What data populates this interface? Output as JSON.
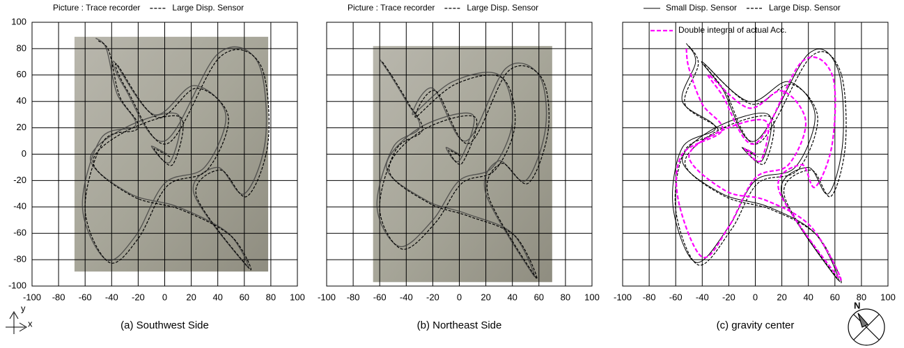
{
  "chart_data": [
    {
      "type": "line",
      "caption": "(a) Southwest Side",
      "xlim": [
        -100,
        100
      ],
      "ylim": [
        -100,
        100
      ],
      "xticks": [
        -100,
        -80,
        -60,
        -40,
        -20,
        0,
        20,
        40,
        60,
        80,
        100
      ],
      "yticks": [
        -100,
        -80,
        -60,
        -40,
        -20,
        0,
        20,
        40,
        60,
        80,
        100
      ],
      "grid": true,
      "series": [
        {
          "name": "Picture : Trace recorder",
          "color": "#3a3a3a",
          "style": "photo",
          "x": [
            -52,
            -44,
            -36,
            -22,
            -48,
            -62,
            -44,
            -22,
            0,
            30,
            46,
            22,
            -8,
            -38,
            -30,
            0,
            40,
            70,
            76,
            60,
            40,
            22,
            62,
            48,
            10,
            -26,
            -56,
            -30,
            10,
            4,
            -10,
            2
          ],
          "values": [
            88,
            80,
            46,
            22,
            12,
            -40,
            -80,
            -62,
            -22,
            -10,
            30,
            52,
            30,
            70,
            50,
            10,
            76,
            70,
            12,
            -30,
            -10,
            -30,
            -85,
            -60,
            -40,
            -30,
            -4,
            20,
            30,
            -6,
            6,
            0
          ]
        },
        {
          "name": "Large Disp. Sensor",
          "color": "#000000",
          "style": "dashed",
          "x": [
            -50,
            -42,
            -34,
            -20,
            -46,
            -60,
            -42,
            -20,
            2,
            32,
            48,
            24,
            -6,
            -36,
            -28,
            2,
            42,
            72,
            78,
            62,
            42,
            24,
            64,
            50,
            12,
            -24,
            -54,
            -28,
            12,
            6,
            -8,
            4
          ],
          "values": [
            86,
            78,
            44,
            20,
            10,
            -42,
            -82,
            -64,
            -24,
            -12,
            28,
            50,
            28,
            68,
            48,
            8,
            74,
            68,
            10,
            -32,
            -12,
            -32,
            -87,
            -62,
            -42,
            -32,
            -6,
            18,
            28,
            -8,
            4,
            -2
          ]
        }
      ]
    },
    {
      "type": "line",
      "caption": "(b) Northeast Side",
      "xlim": [
        -100,
        100
      ],
      "ylim": [
        -100,
        100
      ],
      "xticks": [
        -100,
        -80,
        -60,
        -40,
        -20,
        0,
        20,
        40,
        60,
        80,
        100
      ],
      "yticks": [
        -100,
        -80,
        -60,
        -40,
        -20,
        0,
        20,
        40,
        60,
        80,
        100
      ],
      "grid": true,
      "series": [
        {
          "name": "Picture : Trace recorder",
          "color": "#3a3a3a",
          "style": "photo",
          "x": [
            -60,
            -52,
            -40,
            -30,
            -50,
            -62,
            -45,
            -20,
            0,
            25,
            40,
            30,
            -5,
            -35,
            -20,
            5,
            35,
            60,
            65,
            50,
            30,
            20,
            56,
            40,
            5,
            -25,
            -55,
            -30,
            10,
            0,
            -10,
            0
          ],
          "values": [
            72,
            60,
            40,
            20,
            5,
            -40,
            -70,
            -50,
            -20,
            -10,
            25,
            60,
            55,
            30,
            50,
            10,
            65,
            60,
            20,
            -20,
            -5,
            -30,
            -92,
            -60,
            -45,
            -35,
            -10,
            20,
            30,
            -5,
            5,
            0
          ]
        },
        {
          "name": "Large Disp. Sensor",
          "color": "#000000",
          "style": "dashed",
          "x": [
            -58,
            -50,
            -38,
            -28,
            -48,
            -60,
            -43,
            -18,
            2,
            27,
            42,
            32,
            -3,
            -33,
            -18,
            7,
            37,
            62,
            67,
            52,
            32,
            22,
            58,
            42,
            7,
            -23,
            -53,
            -28,
            12,
            2,
            -8,
            2
          ],
          "values": [
            70,
            58,
            38,
            18,
            3,
            -42,
            -72,
            -52,
            -22,
            -12,
            23,
            58,
            53,
            28,
            48,
            8,
            63,
            58,
            18,
            -22,
            -7,
            -32,
            -94,
            -62,
            -47,
            -37,
            -12,
            18,
            28,
            -7,
            3,
            -2
          ]
        }
      ]
    },
    {
      "type": "line",
      "caption": "(c) gravity center",
      "xlim": [
        -100,
        100
      ],
      "ylim": [
        -100,
        100
      ],
      "xticks": [
        -100,
        -80,
        -60,
        -40,
        -20,
        0,
        20,
        40,
        60,
        80,
        100
      ],
      "yticks": [
        -100,
        -80,
        -60,
        -40,
        -20,
        0,
        20,
        40,
        60,
        80,
        100
      ],
      "grid": true,
      "series": [
        {
          "name": "Small Disp. Sensor",
          "color": "#000000",
          "style": "solid",
          "x": [
            -52,
            -45,
            -55,
            -30,
            -55,
            -62,
            -45,
            -20,
            0,
            30,
            45,
            25,
            -5,
            -40,
            -25,
            0,
            40,
            62,
            66,
            55,
            40,
            20,
            62,
            45,
            10,
            -25,
            -55,
            -30,
            10,
            5,
            -10,
            0
          ],
          "values": [
            84,
            70,
            40,
            20,
            5,
            -40,
            -82,
            -55,
            -20,
            -10,
            30,
            55,
            40,
            70,
            50,
            10,
            76,
            65,
            10,
            -30,
            -10,
            -30,
            -95,
            -60,
            -40,
            -30,
            -5,
            20,
            30,
            -5,
            5,
            0
          ]
        },
        {
          "name": "Large Disp. Sensor",
          "color": "#000000",
          "style": "dashed",
          "x": [
            -50,
            -43,
            -53,
            -28,
            -53,
            -60,
            -43,
            -18,
            2,
            32,
            47,
            27,
            -3,
            -38,
            -23,
            2,
            42,
            64,
            68,
            57,
            42,
            22,
            64,
            47,
            12,
            -23,
            -53,
            -28,
            12,
            7,
            -8,
            2
          ],
          "values": [
            82,
            68,
            38,
            18,
            3,
            -42,
            -84,
            -57,
            -22,
            -12,
            28,
            53,
            38,
            68,
            48,
            8,
            74,
            63,
            8,
            -32,
            -12,
            -32,
            -97,
            -62,
            -42,
            -32,
            -7,
            18,
            28,
            -7,
            3,
            -2
          ]
        },
        {
          "name": "Double integral of actual Acc.",
          "color": "#ff00ff",
          "style": "magenta",
          "x": [
            -52,
            -50,
            -40,
            -25,
            -55,
            -58,
            -40,
            -20,
            0,
            25,
            38,
            20,
            -5,
            -35,
            -25,
            0,
            35,
            58,
            58,
            45,
            35,
            18,
            64,
            42,
            8,
            -22,
            -50,
            -25,
            8,
            4,
            -8,
            0
          ],
          "values": [
            80,
            65,
            38,
            18,
            0,
            -35,
            -78,
            -55,
            -18,
            -8,
            25,
            48,
            35,
            60,
            45,
            8,
            70,
            60,
            8,
            -25,
            -8,
            -28,
            -95,
            -55,
            -35,
            -28,
            -2,
            18,
            25,
            -5,
            4,
            0
          ]
        }
      ]
    }
  ],
  "orientation": {
    "x_label": "x",
    "y_label": "y",
    "north": "N"
  }
}
